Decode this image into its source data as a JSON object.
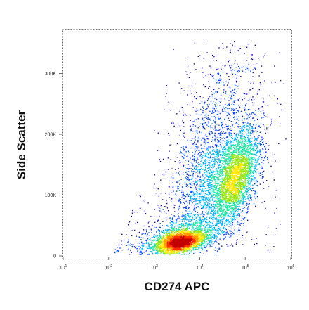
{
  "chart_data": {
    "type": "scatter",
    "title": "",
    "xlabel": "CD274 APC",
    "ylabel": "Side Scatter",
    "x_scale": "log",
    "xlim": [
      10,
      1000000
    ],
    "ylim": [
      0,
      370000
    ],
    "x_ticks": [
      {
        "value": 10,
        "base": "10",
        "exp": "1"
      },
      {
        "value": 100,
        "base": "10",
        "exp": "2"
      },
      {
        "value": 1000,
        "base": "10",
        "exp": "3"
      },
      {
        "value": 10000,
        "base": "10",
        "exp": "4"
      },
      {
        "value": 100000,
        "base": "10",
        "exp": "5"
      },
      {
        "value": 1000000,
        "base": "10",
        "exp": "6"
      }
    ],
    "y_ticks": [
      {
        "value": 0,
        "label": "0"
      },
      {
        "value": 100000,
        "label": "100K"
      },
      {
        "value": 200000,
        "label": "200K"
      },
      {
        "value": 300000,
        "label": "300K"
      }
    ],
    "density_colormap": [
      "#1a10c8",
      "#0a46ff",
      "#00b4ff",
      "#26e6a6",
      "#9be619",
      "#ffe600",
      "#ff9a00",
      "#ff3000",
      "#c40000"
    ],
    "populations": [
      {
        "x_center": 4000,
        "y_center": 22000,
        "density": "high"
      },
      {
        "x_center": 60000,
        "y_center": 125000,
        "density": "high"
      },
      {
        "x_center": 30000,
        "y_center": 230000,
        "density": "low"
      }
    ],
    "grid": false,
    "legend": "none"
  }
}
